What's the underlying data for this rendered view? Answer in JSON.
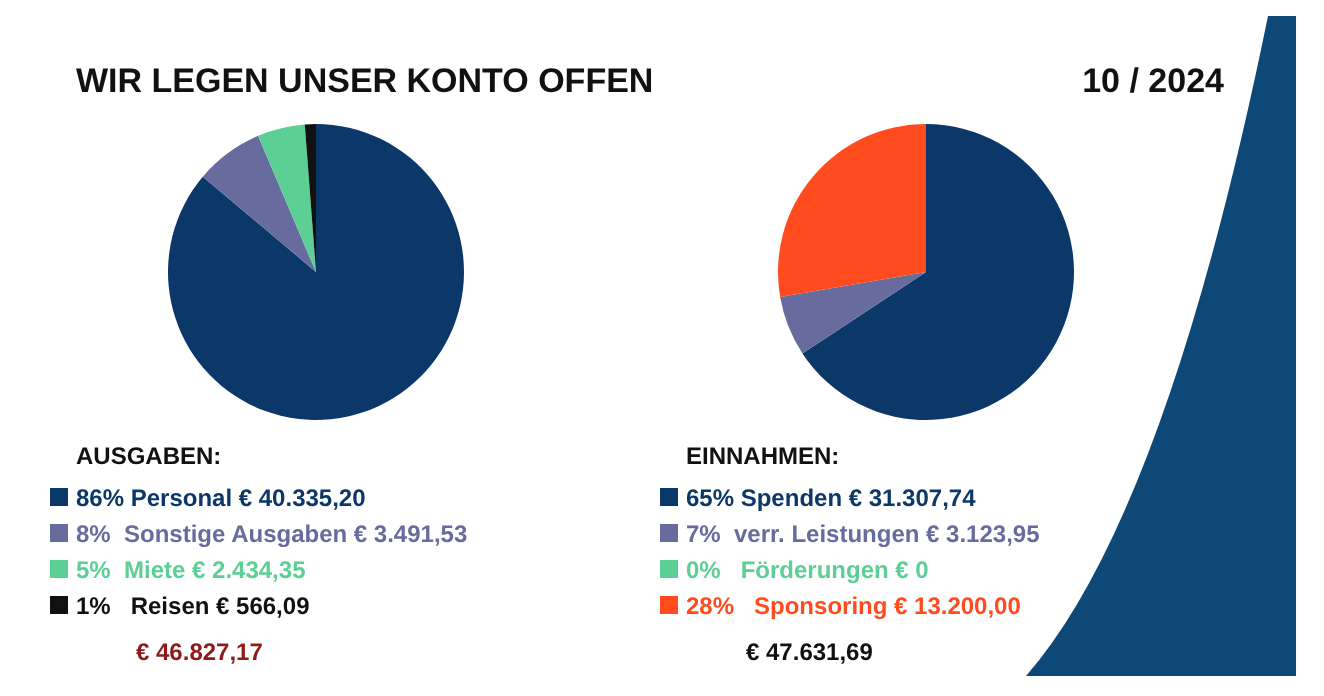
{
  "chart_data": [
    {
      "type": "pie",
      "title": "WIR LEGEN UNSER KONTO OFFEN",
      "legend_title": "AUSGABEN:",
      "legend": "bottom",
      "categories": [
        "86% Personal",
        "8%  Sonstige Ausgaben",
        "5%  Miete",
        "1%   Reisen"
      ],
      "values": [
        40335.2,
        3491.53,
        2434.35,
        566.09
      ],
      "value_labels": [
        "€ 40.335,20",
        "€ 3.491,53",
        "€ 2.434,35",
        "€ 566,09"
      ],
      "colors": [
        "#0b3868",
        "#676b9e",
        "#5ccf94",
        "#111111"
      ],
      "annotations": [
        "€ 46.827,17"
      ]
    },
    {
      "type": "pie",
      "title": "10 / 2024",
      "legend_title": "EINNAHMEN:",
      "legend": "bottom",
      "categories": [
        "65% Spenden",
        "7%  verr. Leistungen",
        "0%   Förderungen",
        "28%   Sponsoring"
      ],
      "values": [
        31307.74,
        3123.95,
        0,
        13200.0
      ],
      "value_labels": [
        "€ 31.307,74",
        "€ 3.123,95",
        "€ 0",
        "€ 13.200,00"
      ],
      "colors": [
        "#0b3868",
        "#676b9e",
        "#5ccf94",
        "#ff4b1d"
      ],
      "annotations": [
        "€ 47.631,69"
      ]
    }
  ]
}
